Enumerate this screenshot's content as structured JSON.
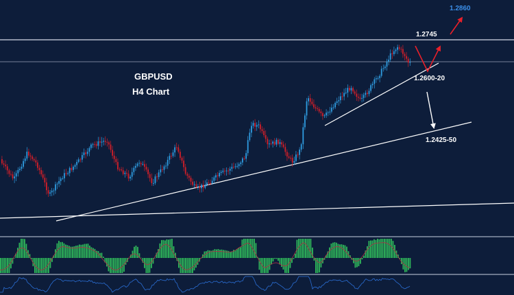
{
  "instrument": {
    "symbol": "GBPUSD",
    "timeframe": "H4 Chart"
  },
  "levels": [
    {
      "label": "1.2860",
      "color": "#3b8ee8"
    },
    {
      "label": "1.2745",
      "color": "#ffffff"
    },
    {
      "label": "1.2600-20",
      "color": "#ffffff"
    },
    {
      "label": "1.2425-50",
      "color": "#ffffff"
    }
  ],
  "colors": {
    "background": "#0d1d3a",
    "bull_candle": "#2f9ce0",
    "bear_candle": "#d21e28",
    "histogram": "#2fb85a",
    "signal_line": "#b03045",
    "oscillator": "#2b6fd6",
    "trendline": "#ffffff",
    "arrow_up": "#e8202a",
    "arrow_down": "#ffffff"
  },
  "panels": [
    "price",
    "histogram-indicator",
    "oscillator"
  ]
}
